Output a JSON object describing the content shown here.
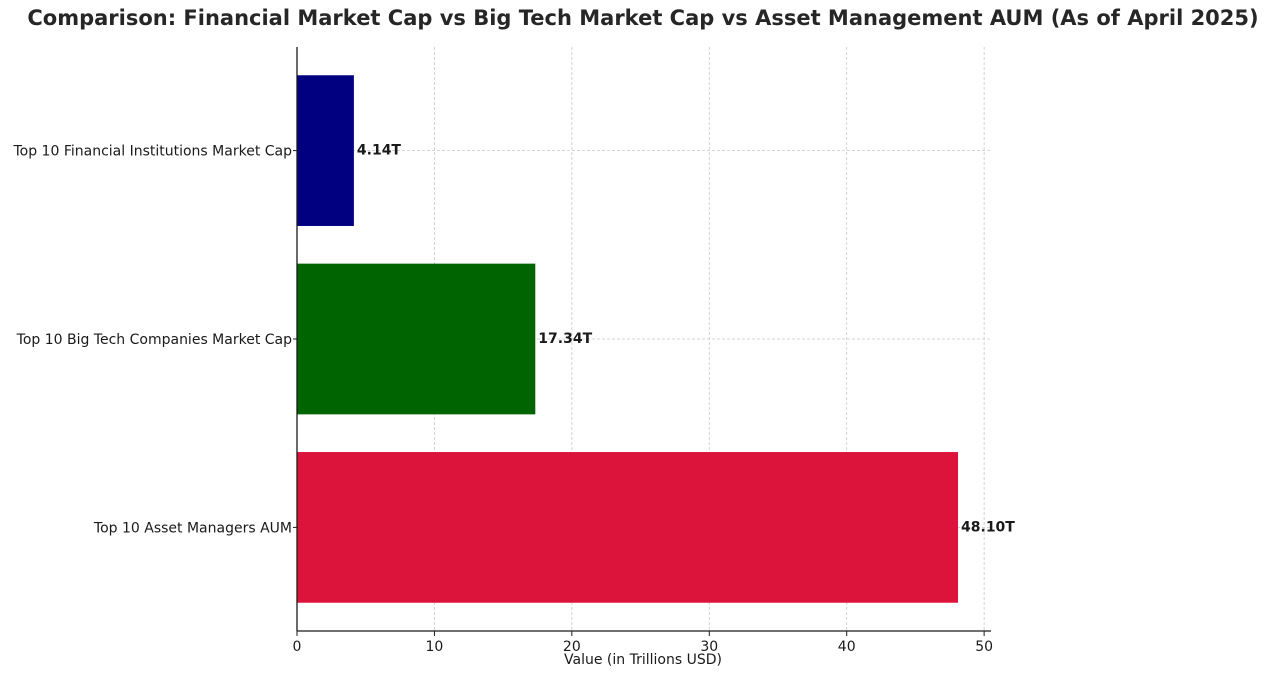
{
  "chart_data": {
    "type": "bar",
    "orientation": "horizontal",
    "title": "Comparison: Financial Market Cap vs Big Tech Market Cap vs Asset Management AUM (As of April 2025)",
    "xlabel": "Value (in Trillions USD)",
    "ylabel": "",
    "categories": [
      "Top 10 Financial Institutions Market Cap",
      "Top 10 Big Tech Companies Market Cap",
      "Top 10 Asset Managers AUM"
    ],
    "values": [
      4.14,
      17.34,
      48.1
    ],
    "value_labels": [
      "4.14T",
      "17.34T",
      "48.10T"
    ],
    "colors": [
      "#000080",
      "#006400",
      "#dc143c"
    ],
    "xlim": [
      0,
      50.5
    ],
    "xticks": [
      0,
      10,
      20,
      30,
      40,
      50
    ],
    "xtick_labels": [
      "0",
      "10",
      "20",
      "30",
      "40",
      "50"
    ],
    "grid": true,
    "legend": "none"
  }
}
